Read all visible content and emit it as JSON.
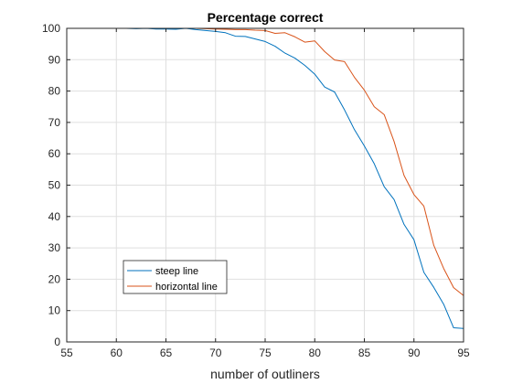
{
  "chart_data": {
    "type": "line",
    "title": "Percentage correct",
    "xlabel": "number of outliners",
    "ylabel": "",
    "xlim": [
      55,
      95
    ],
    "ylim": [
      0,
      100
    ],
    "xticks": [
      55,
      60,
      65,
      70,
      75,
      80,
      85,
      90,
      95
    ],
    "yticks": [
      0,
      10,
      20,
      30,
      40,
      50,
      60,
      70,
      80,
      90,
      100
    ],
    "grid": true,
    "legend_position": "bottom-left",
    "x": [
      55,
      56,
      57,
      58,
      59,
      60,
      61,
      62,
      63,
      64,
      65,
      66,
      67,
      68,
      69,
      70,
      71,
      72,
      73,
      74,
      75,
      76,
      77,
      78,
      79,
      80,
      81,
      82,
      83,
      84,
      85,
      86,
      87,
      88,
      89,
      90,
      91,
      92,
      93,
      94,
      95
    ],
    "series": [
      {
        "name": "steep line",
        "color": "#0072BD",
        "values": [
          100,
          100,
          100,
          100,
          100,
          100,
          100,
          99.9,
          100,
          99.8,
          99.8,
          99.7,
          100,
          99.6,
          99.3,
          99,
          98.6,
          97.5,
          97.4,
          96.6,
          95.8,
          94.3,
          92.1,
          90.5,
          88.2,
          85.4,
          81.3,
          79.7,
          74,
          67.7,
          62.5,
          56.8,
          49.5,
          45.4,
          37.5,
          32.6,
          22.2,
          17.4,
          12,
          4.5,
          4.3
        ]
      },
      {
        "name": "horizontal line",
        "color": "#D95319",
        "values": [
          100,
          100,
          100,
          100,
          100,
          100,
          100,
          100,
          100,
          100,
          100,
          100,
          100,
          100,
          99.9,
          99.8,
          99.7,
          99.6,
          99.6,
          99.4,
          99.3,
          98.4,
          98.6,
          97.3,
          95.6,
          96,
          92.6,
          89.9,
          89.4,
          84.4,
          80.3,
          75,
          72.5,
          63.9,
          53.1,
          47,
          43.3,
          30.8,
          23.4,
          17.3,
          14.8
        ]
      }
    ]
  }
}
